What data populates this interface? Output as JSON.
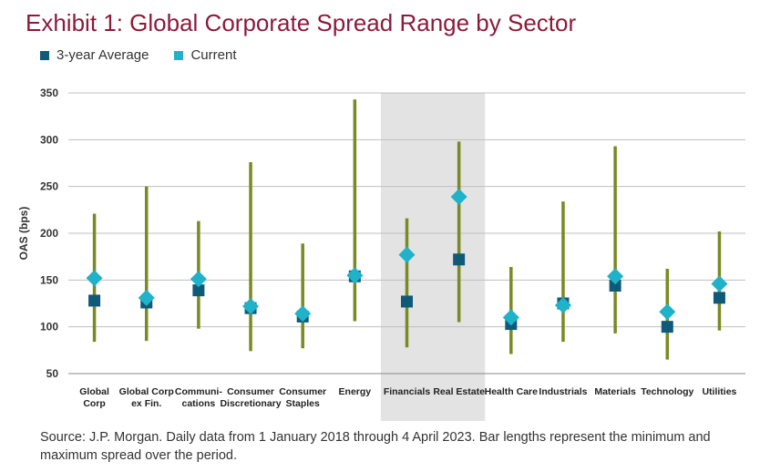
{
  "title": "Exhibit 1: Global Corporate Spread Range by Sector",
  "legend": {
    "avg_label": "3-year Average",
    "current_label": "Current"
  },
  "colors": {
    "title": "#8c1b3a",
    "avg": "#0e5a78",
    "current": "#1fb2c8",
    "range": "#7a8a22",
    "highlight": "#e3e3e3",
    "grid": "#bfbfbf"
  },
  "source": "Source: J.P. Morgan. Daily data from 1 January 2018 through 4 April 2023. Bar lengths represent the minimum and maximum spread over the period.",
  "chart_data": {
    "type": "range-dot",
    "ylabel": "OAS (bps)",
    "ylim": [
      50,
      350
    ],
    "yticks": [
      50,
      100,
      150,
      200,
      250,
      300,
      350
    ],
    "grid": true,
    "highlighted_categories": [
      "Financials",
      "Real Estate"
    ],
    "categories": [
      [
        "Global",
        "Corp"
      ],
      [
        "Global Corp",
        "ex Fin."
      ],
      [
        "Communi-",
        "cations"
      ],
      [
        "Consumer",
        "Discretionary"
      ],
      [
        "Consumer",
        "Staples"
      ],
      [
        "Energy"
      ],
      [
        "Financials"
      ],
      [
        "Real Estate"
      ],
      [
        "Health Care"
      ],
      [
        "Industrials"
      ],
      [
        "Materials"
      ],
      [
        "Technology"
      ],
      [
        "Utilities"
      ]
    ],
    "series": [
      {
        "name": "Min",
        "values": [
          84,
          85,
          98,
          74,
          77,
          106,
          78,
          105,
          71,
          84,
          93,
          65,
          96
        ]
      },
      {
        "name": "Max",
        "values": [
          221,
          250,
          213,
          276,
          189,
          343,
          216,
          298,
          164,
          234,
          293,
          162,
          202
        ]
      },
      {
        "name": "3-year Average",
        "values": [
          128,
          126,
          139,
          120,
          111,
          154,
          127,
          172,
          103,
          125,
          144,
          100,
          131
        ]
      },
      {
        "name": "Current",
        "values": [
          152,
          131,
          151,
          122,
          114,
          155,
          177,
          239,
          110,
          123,
          154,
          116,
          146
        ]
      }
    ]
  }
}
